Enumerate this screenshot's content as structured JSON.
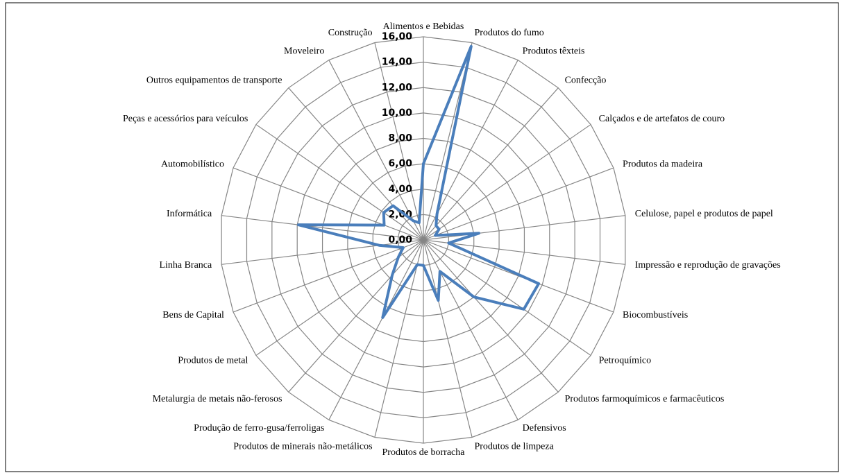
{
  "chart_data": {
    "type": "radar",
    "categories": [
      "Alimentos e Bebidas",
      "Produtos do fumo",
      "Produtos têxteis",
      "Confecção",
      "Calçados e de artefatos de couro",
      "Produtos da madeira",
      "Celulose, papel e produtos de papel",
      "Impressão e reprodução de gravações",
      "Biocombustíveis",
      "Petroquímico",
      "Produtos farmoquímicos e farmacêuticos",
      "Defensivos",
      "Produtos de limpeza",
      "Produtos de borracha",
      "Produtos de minerais não-metálicos",
      "Produção de ferro-gusa/ferroligas",
      "Metalurgia de metais não-ferosos",
      "Produtos de metal",
      "Bens de Capital",
      "Linha Branca",
      "Informática",
      "Automobilístico",
      "Peças e acessórios para veículos",
      "Outros equipamentos de transporte",
      "Moveleiro",
      "Construção"
    ],
    "values": [
      6.0,
      15.7,
      2.3,
      1.5,
      1.5,
      1.0,
      4.4,
      2.0,
      9.7,
      9.6,
      6.0,
      2.8,
      4.9,
      2.0,
      2.0,
      6.9,
      3.7,
      2.4,
      1.7,
      3.5,
      9.9,
      3.3,
      3.8,
      3.6,
      1.7,
      1.4
    ],
    "color": "#4a7ebb",
    "ylim": [
      0,
      16
    ],
    "yticks": [
      {
        "value": 0,
        "label": "0,00"
      },
      {
        "value": 2,
        "label": "2,00"
      },
      {
        "value": 4,
        "label": "4,00"
      },
      {
        "value": 6,
        "label": "6,00"
      },
      {
        "value": 8,
        "label": "8,00"
      },
      {
        "value": 10,
        "label": "10,00"
      },
      {
        "value": 12,
        "label": "12,00"
      },
      {
        "value": 14,
        "label": "14,00"
      },
      {
        "value": 16,
        "label": "16,00"
      }
    ],
    "grid": true
  }
}
